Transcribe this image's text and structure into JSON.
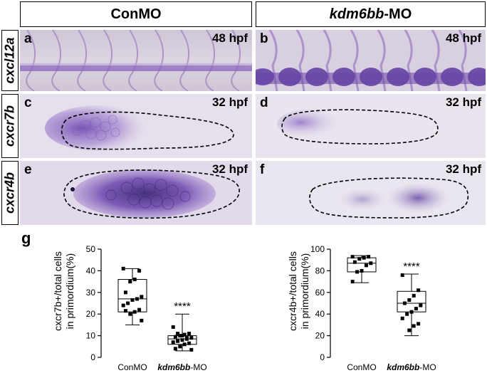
{
  "figure": {
    "col_headers": {
      "con": "ConMO",
      "kdm_italic": "kdm6bb",
      "kdm_suffix": "-MO"
    },
    "row_labels": {
      "r1": "cxcl12a",
      "r2": "cxcr7b",
      "r3": "cxcr4b"
    },
    "panels": {
      "a": {
        "label": "a",
        "stage": "48 hpf"
      },
      "b": {
        "label": "b",
        "stage": "48 hpf"
      },
      "c": {
        "label": "c",
        "stage": "32 hpf"
      },
      "d": {
        "label": "d",
        "stage": "32 hpf"
      },
      "e": {
        "label": "e",
        "stage": "32 hpf"
      },
      "f": {
        "label": "f",
        "stage": "32 hpf"
      }
    },
    "g_label": "g",
    "colors": {
      "stain": "#7a55b8",
      "background": "#e4dbea",
      "dark_stain": "#4a2e86"
    }
  },
  "chart_data": [
    {
      "type": "box",
      "ylabel_line1": "cxcr7b+/total cells",
      "ylabel_line2": "in primordium(%)",
      "ylim": [
        0,
        50
      ],
      "yticks": [
        "0",
        "10",
        "20",
        "30",
        "40",
        "50"
      ],
      "categories": [
        "ConMO",
        "kdm6bb-MO"
      ],
      "category_display": [
        {
          "italic": "",
          "plain": "ConMO"
        },
        {
          "italic": "kdm6bb",
          "plain": "-MO"
        }
      ],
      "significance": "****",
      "boxes": [
        {
          "min": 15,
          "q1": 21,
          "median": 27,
          "q3": 36,
          "max": 41
        },
        {
          "min": 3,
          "q1": 6,
          "median": 8.5,
          "q3": 10,
          "max": 20
        }
      ],
      "points": [
        [
          41,
          40,
          36,
          35,
          30,
          28,
          27,
          26.5,
          25,
          24,
          22,
          21,
          20,
          21.5,
          17
        ],
        [
          14,
          11,
          10.5,
          10,
          9.5,
          9,
          8.5,
          8,
          7.5,
          7,
          6.5,
          6,
          5,
          4,
          3.5,
          9,
          10,
          11
        ]
      ]
    },
    {
      "type": "box",
      "ylabel_line1": "cxcr4b+/total cells",
      "ylabel_line2": "in primordium(%)",
      "ylim": [
        0,
        100
      ],
      "yticks": [
        "0",
        "20",
        "40",
        "60",
        "80",
        "100"
      ],
      "categories": [
        "ConMO",
        "kdm6bb-MO"
      ],
      "category_display": [
        {
          "italic": "",
          "plain": "ConMO"
        },
        {
          "italic": "kdm6bb",
          "plain": "-MO"
        }
      ],
      "significance": "****",
      "boxes": [
        {
          "min": 69,
          "q1": 79,
          "median": 87,
          "q3": 92,
          "max": 94
        },
        {
          "min": 20,
          "q1": 42,
          "median": 50,
          "q3": 61,
          "max": 77
        }
      ],
      "points": [
        [
          93,
          93,
          92,
          91,
          88,
          87,
          85,
          80,
          79,
          70
        ],
        [
          76,
          62,
          57,
          53,
          50,
          48,
          45,
          42,
          40,
          36,
          31,
          29,
          25
        ]
      ]
    }
  ]
}
